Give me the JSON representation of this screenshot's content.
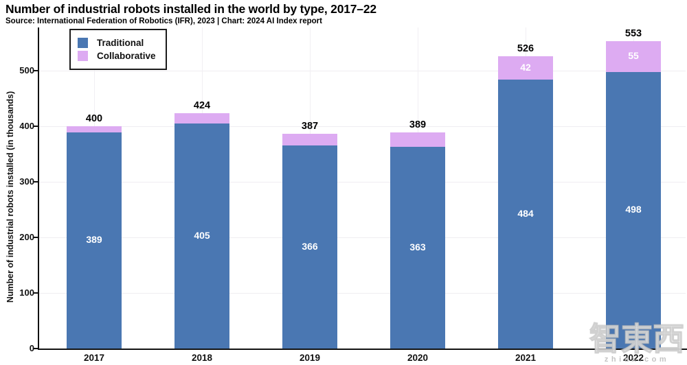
{
  "header": {
    "title": "Number of industrial robots installed in the world by type, 2017–22",
    "source": "Source: International Federation of Robotics (IFR), 2023 | Chart: 2024 AI Index report"
  },
  "legend": {
    "position": "top-left",
    "items": [
      {
        "label": "Traditional",
        "color": "#4a77b2"
      },
      {
        "label": "Collaborative",
        "color": "#ddabf2"
      }
    ]
  },
  "y_axis": {
    "label": "Number of industrial robots installed (in thousands)",
    "ticks": [
      0,
      100,
      200,
      300,
      400,
      500
    ]
  },
  "chart_data": {
    "type": "bar",
    "stacked": true,
    "title": "Number of industrial robots installed in the world by type, 2017–22",
    "xlabel": "",
    "ylabel": "Number of industrial robots installed (in thousands)",
    "ylim": [
      0,
      560
    ],
    "grid": true,
    "legend_position": "top-left",
    "categories": [
      "2017",
      "2018",
      "2019",
      "2020",
      "2021",
      "2022"
    ],
    "series": [
      {
        "name": "Traditional",
        "color": "#4a77b2",
        "values": [
          389,
          405,
          366,
          363,
          484,
          498
        ],
        "labels_shown": [
          true,
          true,
          true,
          true,
          true,
          true
        ]
      },
      {
        "name": "Collaborative",
        "color": "#ddabf2",
        "values": [
          11,
          19,
          21,
          26,
          42,
          55
        ],
        "labels_shown": [
          false,
          false,
          false,
          false,
          true,
          true
        ]
      }
    ],
    "totals": [
      400,
      424,
      387,
      389,
      526,
      553
    ]
  },
  "watermark": {
    "text": "智東西",
    "subtext": "zhidx.com"
  }
}
